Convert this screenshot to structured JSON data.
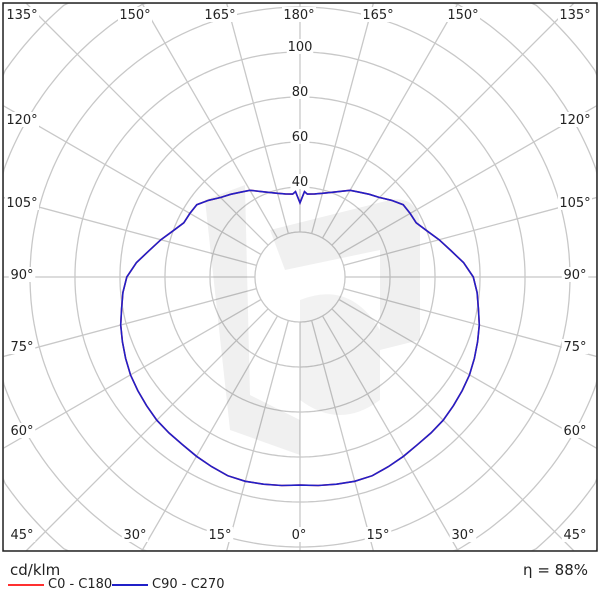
{
  "legend": {
    "unit": "cd/klm",
    "efficiency": "η = 88%",
    "items": [
      {
        "label": "C0 - C180",
        "color": "#ff3030"
      },
      {
        "label": "C90 - C270",
        "color": "#2020c8"
      }
    ]
  },
  "chart_data": {
    "type": "polar",
    "title": "",
    "radial_unit": "cd/klm",
    "radial_ticks": [
      40,
      60,
      80,
      100
    ],
    "radial_grid_step": 20,
    "angle_step_deg": 15,
    "grid": true,
    "angle_labels": {
      "top": [
        "135°",
        "150°",
        "165°",
        "180°",
        "165°",
        "150°",
        "135°"
      ],
      "left": [
        "120°",
        "105°",
        "90°",
        "75°",
        "60°"
      ],
      "right": [
        "120°",
        "105°",
        "90°",
        "75°",
        "60°"
      ],
      "bottom": [
        "45°",
        "30°",
        "15°",
        "0°",
        "15°",
        "30°",
        "45°"
      ]
    },
    "gamma_deg": [
      0,
      5,
      10,
      15,
      20,
      25,
      30,
      35,
      40,
      45,
      50,
      55,
      60,
      65,
      70,
      75,
      80,
      85,
      90,
      95,
      100,
      105,
      110,
      115,
      120,
      125,
      130,
      135,
      140,
      145,
      150,
      155,
      160,
      165,
      170,
      175,
      177,
      180
    ],
    "series": [
      {
        "name": "C0 - C180",
        "color": "#ff3030",
        "values": [
          92.5,
          93,
          93.5,
          94,
          94,
          93,
          92,
          91,
          90.5,
          90,
          89,
          88,
          87,
          85.5,
          84,
          82.5,
          80.5,
          79,
          77,
          73,
          68,
          64,
          60,
          57,
          56.5,
          56,
          53,
          50,
          48,
          46,
          44.5,
          42,
          40,
          38.5,
          37.5,
          37,
          38,
          33
        ]
      },
      {
        "name": "C90 - C270",
        "color": "#2020c8",
        "values": [
          92.5,
          93,
          93.5,
          94,
          94,
          93,
          92,
          91,
          90.5,
          90,
          89,
          88,
          87,
          85.5,
          84,
          82.5,
          80.5,
          79,
          77,
          73,
          68,
          64,
          60,
          57,
          56.5,
          56,
          53,
          50,
          48,
          46,
          44.5,
          42,
          40,
          38.5,
          37.5,
          37,
          38,
          33
        ]
      }
    ],
    "efficiency_percent": 88
  }
}
